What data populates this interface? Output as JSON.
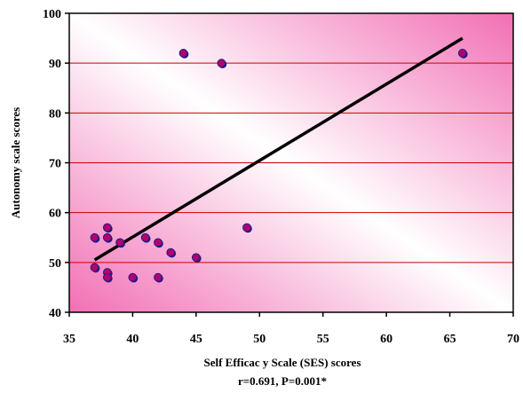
{
  "chart_data": {
    "type": "scatter",
    "title": "",
    "xlabel": "Self Efficac y Scale (SES) scores",
    "ylabel": "Autonomy scale scores",
    "annotation": "r=0.691, P=0.001*",
    "xlim": [
      35,
      70
    ],
    "ylim": [
      40,
      100
    ],
    "x_ticks": [
      35,
      40,
      45,
      50,
      55,
      60,
      65,
      70
    ],
    "y_ticks": [
      40,
      50,
      60,
      70,
      80,
      90,
      100
    ],
    "grid": "horizontal",
    "colors": {
      "point_fill": "#b0006a",
      "point_edge": "#1a1a8c",
      "gridline": "#cc0000",
      "trendline": "#000000",
      "background_light": "#ffffff",
      "background_pink": "#f26fb5"
    },
    "points": [
      {
        "x": 37,
        "y": 55
      },
      {
        "x": 37,
        "y": 49
      },
      {
        "x": 38,
        "y": 57
      },
      {
        "x": 38,
        "y": 55
      },
      {
        "x": 38,
        "y": 48
      },
      {
        "x": 38,
        "y": 47
      },
      {
        "x": 39,
        "y": 54
      },
      {
        "x": 40,
        "y": 47
      },
      {
        "x": 41,
        "y": 55
      },
      {
        "x": 42,
        "y": 54
      },
      {
        "x": 42,
        "y": 47
      },
      {
        "x": 43,
        "y": 52
      },
      {
        "x": 44,
        "y": 92
      },
      {
        "x": 45,
        "y": 51
      },
      {
        "x": 47,
        "y": 90
      },
      {
        "x": 49,
        "y": 57
      },
      {
        "x": 66,
        "y": 92
      }
    ],
    "trendline": {
      "x1": 37,
      "y1": 50.5,
      "x2": 66,
      "y2": 95
    }
  }
}
